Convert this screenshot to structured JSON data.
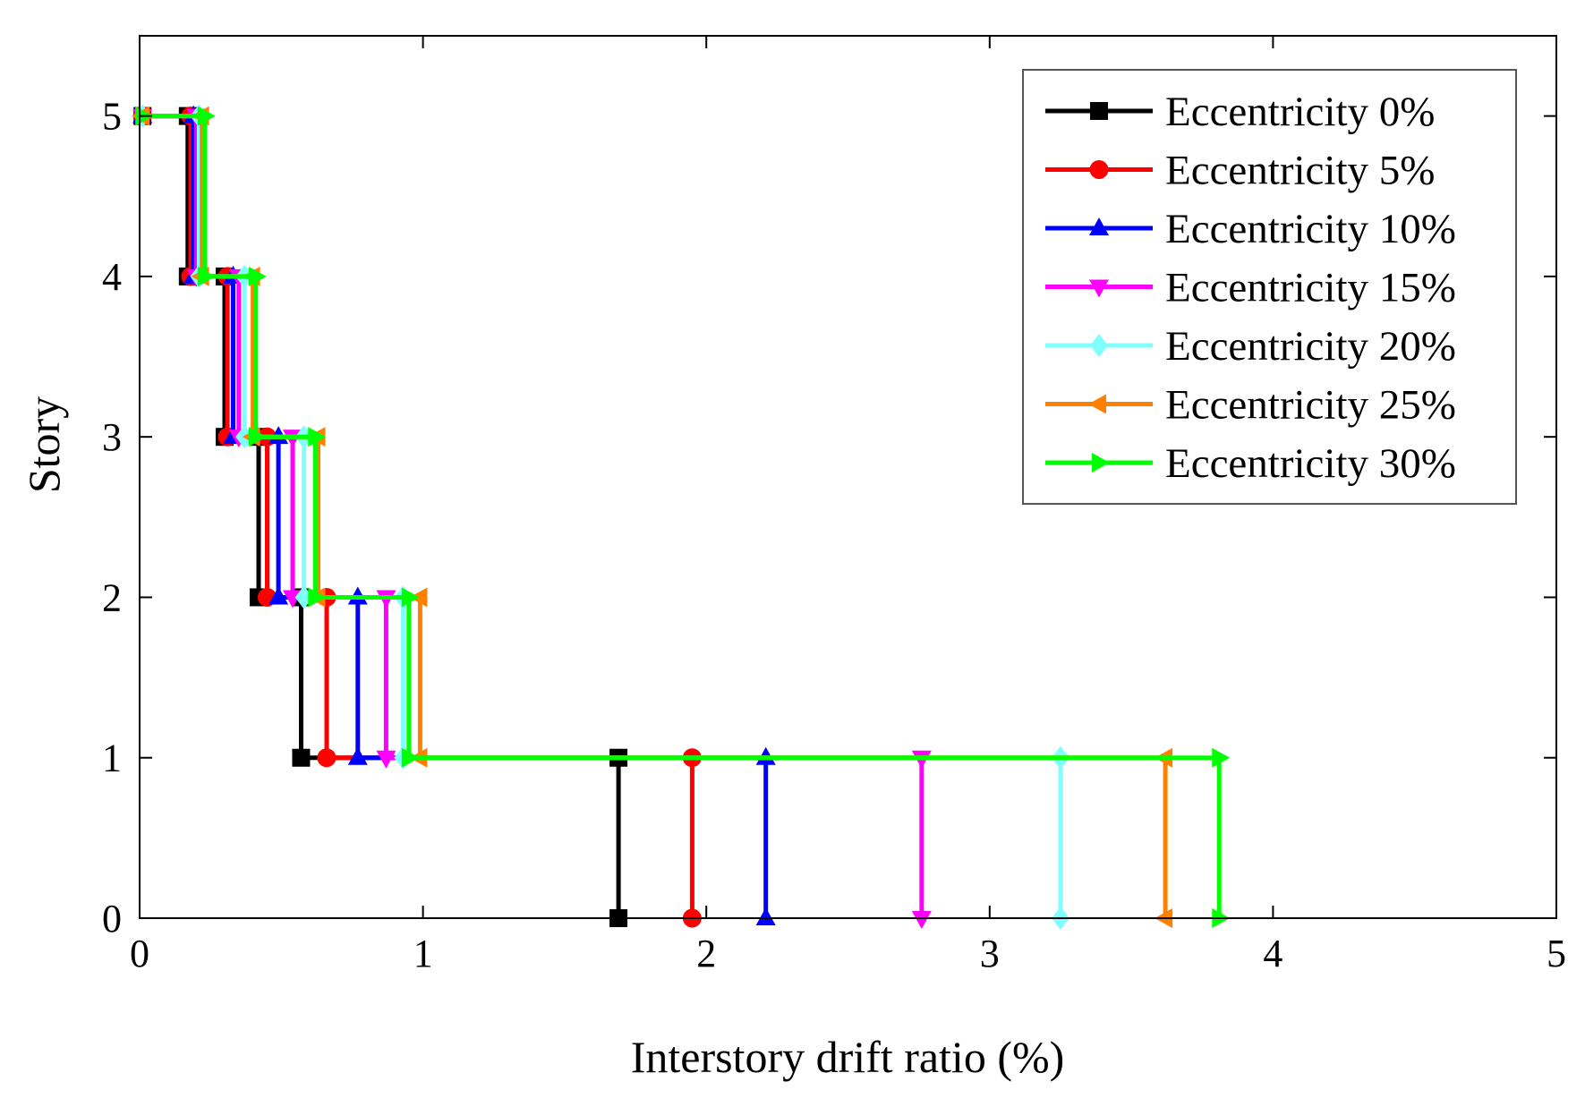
{
  "chart_data": {
    "type": "line",
    "title": "",
    "xlabel": "Interstory drift ratio (%)",
    "ylabel": "Story",
    "xlim": [
      0,
      5
    ],
    "ylim": [
      0,
      5.5
    ],
    "xticks": [
      0,
      1,
      2,
      3,
      4,
      5
    ],
    "yticks": [
      0,
      1,
      2,
      3,
      4,
      5
    ],
    "xtick_labels": [
      "0",
      "1",
      "2",
      "3",
      "4",
      "5"
    ],
    "ytick_labels": [
      "0",
      "1",
      "2",
      "3",
      "4",
      "5"
    ],
    "grid": false,
    "legend_position": "top-right",
    "series": [
      {
        "name": "Eccentricity 0%",
        "color": "#000000",
        "marker": "square",
        "stories": [
          0,
          1,
          1,
          2,
          2,
          3,
          3,
          4,
          4,
          5,
          5
        ],
        "drifts": [
          1.69,
          1.69,
          0.57,
          0.57,
          0.42,
          0.42,
          0.3,
          0.3,
          0.17,
          0.17,
          0.01
        ]
      },
      {
        "name": "Eccentricity 5%",
        "color": "#ff0000",
        "marker": "circle",
        "stories": [
          0,
          1,
          1,
          2,
          2,
          3,
          3,
          4,
          4,
          5,
          5
        ],
        "drifts": [
          1.95,
          1.95,
          0.66,
          0.66,
          0.45,
          0.45,
          0.31,
          0.31,
          0.18,
          0.18,
          0.01
        ]
      },
      {
        "name": "Eccentricity 10%",
        "color": "#0000ff",
        "marker": "triangle-up",
        "stories": [
          0,
          1,
          1,
          2,
          2,
          3,
          3,
          4,
          4,
          5,
          5
        ],
        "drifts": [
          2.21,
          2.21,
          0.77,
          0.77,
          0.49,
          0.49,
          0.33,
          0.33,
          0.19,
          0.19,
          0.01
        ]
      },
      {
        "name": "Eccentricity 15%",
        "color": "#ff00ff",
        "marker": "triangle-down",
        "stories": [
          0,
          1,
          1,
          2,
          2,
          3,
          3,
          4,
          4,
          5,
          5
        ],
        "drifts": [
          2.76,
          2.76,
          0.87,
          0.87,
          0.54,
          0.54,
          0.35,
          0.35,
          0.2,
          0.2,
          0.01
        ]
      },
      {
        "name": "Eccentricity 20%",
        "color": "#80ffff",
        "marker": "diamond",
        "stories": [
          0,
          1,
          1,
          2,
          2,
          3,
          3,
          4,
          4,
          5,
          5
        ],
        "drifts": [
          3.25,
          3.25,
          0.93,
          0.93,
          0.58,
          0.58,
          0.37,
          0.37,
          0.21,
          0.21,
          0.01
        ]
      },
      {
        "name": "Eccentricity 25%",
        "color": "#ff8000",
        "marker": "triangle-left",
        "stories": [
          0,
          1,
          1,
          2,
          2,
          3,
          3,
          4,
          4,
          5,
          5
        ],
        "drifts": [
          3.62,
          3.62,
          0.99,
          0.99,
          0.63,
          0.63,
          0.4,
          0.4,
          0.22,
          0.22,
          0.01
        ]
      },
      {
        "name": "Eccentricity 30%",
        "color": "#00ff00",
        "marker": "triangle-right",
        "stories": [
          0,
          1,
          1,
          2,
          2,
          3,
          3,
          4,
          4,
          5,
          5
        ],
        "drifts": [
          3.81,
          3.81,
          0.95,
          0.95,
          0.62,
          0.62,
          0.41,
          0.41,
          0.23,
          0.23,
          0.01
        ]
      }
    ]
  }
}
